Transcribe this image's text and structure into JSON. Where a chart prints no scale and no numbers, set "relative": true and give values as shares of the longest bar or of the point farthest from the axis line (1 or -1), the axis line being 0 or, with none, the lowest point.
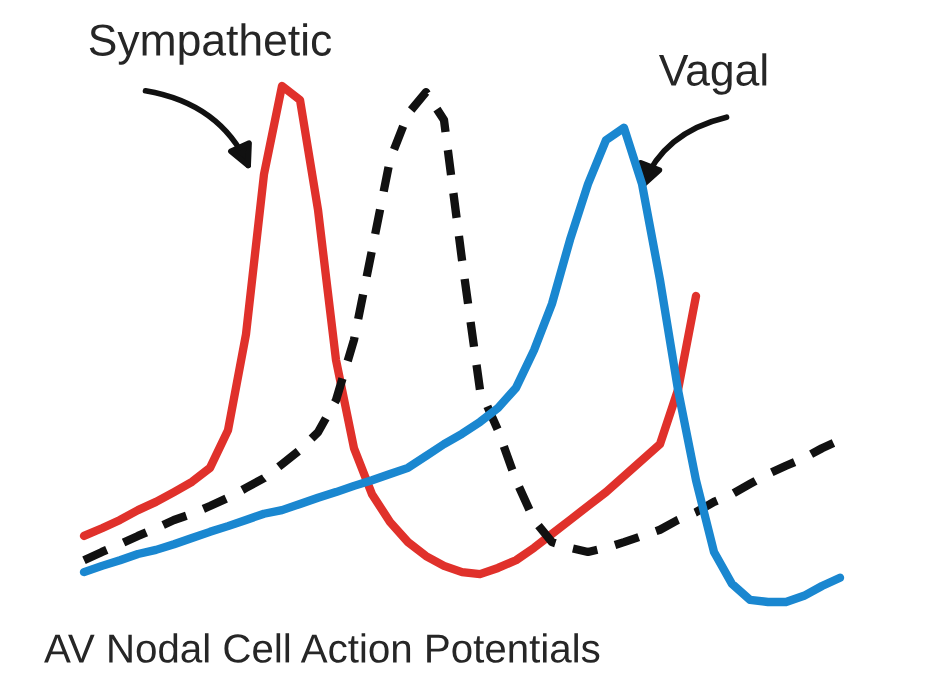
{
  "chart_data": {
    "type": "line",
    "title": "AV Nodal Cell Action Potentials",
    "relative": true,
    "categories": [
      null,
      null,
      null,
      null,
      null,
      null,
      null,
      null,
      null,
      null,
      null,
      null,
      null,
      null,
      null,
      null,
      null,
      null,
      null,
      null,
      null,
      null,
      null,
      null,
      null,
      null,
      null,
      null,
      null,
      null,
      null,
      null,
      null,
      null,
      null,
      null,
      null,
      null,
      null,
      null,
      null,
      null,
      null
    ],
    "series": [
      {
        "color": "#e0312b",
        "line_style": "solid",
        "values": [
          0.128,
          0.143,
          0.159,
          0.178,
          0.194,
          0.213,
          0.233,
          0.26,
          0.333,
          0.519,
          0.829,
          1.0,
          0.973,
          0.76,
          0.469,
          0.298,
          0.209,
          0.155,
          0.116,
          0.089,
          0.07,
          0.058,
          0.054,
          0.066,
          0.081,
          0.105,
          0.132,
          0.159,
          0.186,
          0.213,
          0.244,
          0.275,
          0.306,
          0.411,
          0.593,
          null,
          null,
          null,
          null,
          null,
          null,
          null,
          null
        ]
      },
      {
        "color": "#111111",
        "line_style": "dashed",
        "values": [
          0.081,
          0.097,
          0.112,
          0.128,
          0.143,
          0.159,
          0.171,
          0.186,
          0.202,
          0.221,
          0.24,
          0.267,
          0.295,
          0.329,
          0.391,
          0.508,
          0.682,
          0.857,
          0.946,
          0.988,
          0.934,
          0.663,
          0.411,
          0.333,
          0.236,
          0.159,
          0.116,
          0.105,
          0.097,
          0.105,
          0.116,
          0.128,
          0.14,
          0.159,
          0.174,
          0.194,
          0.209,
          0.229,
          0.248,
          0.264,
          0.279,
          0.298,
          0.314
        ]
      },
      {
        "color": "#1a87d0",
        "line_style": "solid",
        "values": [
          0.058,
          0.07,
          0.081,
          0.093,
          0.101,
          0.112,
          0.124,
          0.136,
          0.147,
          0.159,
          0.171,
          0.178,
          0.19,
          0.202,
          0.213,
          0.225,
          0.236,
          0.248,
          0.26,
          0.283,
          0.306,
          0.326,
          0.349,
          0.376,
          0.415,
          0.488,
          0.578,
          0.702,
          0.81,
          0.895,
          0.919,
          0.81,
          0.624,
          0.411,
          0.236,
          0.097,
          0.035,
          0.004,
          0,
          0,
          0.012,
          0.031,
          0.047
        ]
      }
    ],
    "annotations": [
      "Sympathetic",
      "Vagal"
    ]
  }
}
